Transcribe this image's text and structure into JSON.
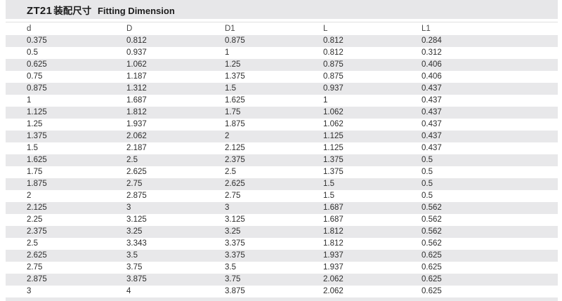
{
  "title": {
    "model": "ZT21",
    "cn": "装配尺寸",
    "en": "Fitting Dimension"
  },
  "colors": {
    "title_band_bg": "#e7e7e9",
    "row_stripe_bg": "#e8e8ea",
    "data_text": "#2e2e2e",
    "header_text": "#4a4a4a"
  },
  "table": {
    "columns": [
      "d",
      "D",
      "D1",
      "L",
      "L1"
    ],
    "rows": [
      [
        "0.375",
        "0.812",
        "0.875",
        "0.812",
        "0.284"
      ],
      [
        "0.5",
        "0.937",
        "1",
        "0.812",
        "0.312"
      ],
      [
        "0.625",
        "1.062",
        "1.25",
        "0.875",
        "0.406"
      ],
      [
        "0.75",
        "1.187",
        "1.375",
        "0.875",
        "0.406"
      ],
      [
        "0.875",
        "1.312",
        "1.5",
        "0.937",
        "0.437"
      ],
      [
        "1",
        "1.687",
        "1.625",
        "1",
        "0.437"
      ],
      [
        "1.125",
        "1.812",
        "1.75",
        "1.062",
        "0.437"
      ],
      [
        "1.25",
        "1.937",
        "1.875",
        "1.062",
        "0.437"
      ],
      [
        "1.375",
        "2.062",
        "2",
        "1.125",
        "0.437"
      ],
      [
        "1.5",
        "2.187",
        "2.125",
        "1.125",
        "0.437"
      ],
      [
        "1.625",
        "2.5",
        "2.375",
        "1.375",
        "0.5"
      ],
      [
        "1.75",
        "2.625",
        "2.5",
        "1.375",
        "0.5"
      ],
      [
        "1.875",
        "2.75",
        "2.625",
        "1.5",
        "0.5"
      ],
      [
        "2",
        "2.875",
        "2.75",
        "1.5",
        "0.5"
      ],
      [
        "2.125",
        "3",
        "3",
        "1.687",
        "0.562"
      ],
      [
        "2.25",
        "3.125",
        "3.125",
        "1.687",
        "0.562"
      ],
      [
        "2.375",
        "3.25",
        "3.25",
        "1.812",
        "0.562"
      ],
      [
        "2.5",
        "3.343",
        "3.375",
        "1.812",
        "0.562"
      ],
      [
        "2.625",
        "3.5",
        "3.375",
        "1.937",
        "0.625"
      ],
      [
        "2.75",
        "3.75",
        "3.5",
        "1.937",
        "0.625"
      ],
      [
        "2.875",
        "3.875",
        "3.75",
        "2.062",
        "0.625"
      ],
      [
        "3",
        "4",
        "3.875",
        "2.062",
        "0.625"
      ]
    ]
  }
}
